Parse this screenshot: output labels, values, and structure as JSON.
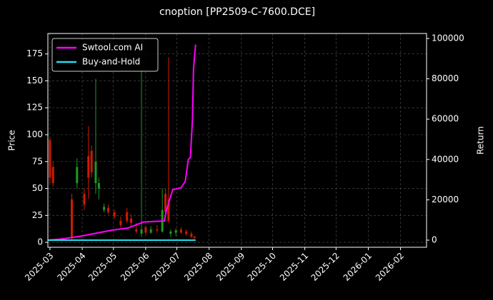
{
  "chart_data": {
    "type": "candlestick",
    "title": "cnoption [PP2509-C-7600.DCE]",
    "ylabel": "Price",
    "y2label": "Return",
    "candles": {
      "x": [
        0,
        3,
        21,
        26,
        33,
        37,
        40,
        44,
        47,
        52,
        56,
        62,
        68,
        74,
        78,
        83,
        88,
        92,
        97,
        103,
        108,
        111,
        114,
        116,
        121,
        126,
        131,
        136,
        139
      ],
      "open": [
        95,
        70,
        40,
        55,
        45,
        80,
        85,
        55,
        50,
        30,
        32,
        28,
        20,
        28,
        22,
        12,
        8,
        14,
        9,
        12,
        10,
        45,
        40,
        8,
        9,
        12,
        10,
        8,
        5
      ],
      "high": [
        97,
        75,
        45,
        78,
        50,
        108,
        90,
        152,
        60,
        36,
        35,
        30,
        24,
        32,
        26,
        18,
        160,
        16,
        15,
        16,
        50,
        50,
        172,
        12,
        13,
        14,
        12,
        10,
        6
      ],
      "low": [
        55,
        52,
        2,
        50,
        30,
        40,
        60,
        45,
        40,
        28,
        26,
        22,
        14,
        18,
        15,
        8,
        5,
        7,
        8,
        9,
        9,
        22,
        18,
        5,
        6,
        8,
        6,
        4,
        3
      ],
      "close": [
        60,
        55,
        5,
        70,
        35,
        60,
        65,
        75,
        55,
        33,
        28,
        24,
        16,
        20,
        18,
        10,
        12,
        9,
        12,
        11,
        30,
        28,
        20,
        10,
        11,
        9,
        8,
        5,
        4
      ],
      "up_color": "#1f9a1f",
      "down_color": "#d01a00"
    },
    "series": [
      {
        "name": "Swtool.com AI",
        "color": "#ff00ff",
        "axis": "y2",
        "x": [
          -2,
          10,
          30,
          40,
          60,
          75,
          85,
          90,
          110,
          112,
          118,
          126,
          130,
          133,
          135,
          137,
          138,
          140
        ],
        "values": [
          0,
          500,
          2000,
          3000,
          5000,
          6000,
          8000,
          9000,
          9500,
          15000,
          25000,
          26000,
          29000,
          40000,
          41000,
          60000,
          85000,
          97000
        ]
      },
      {
        "name": "Buy-and-Hold",
        "color": "#22dde8",
        "axis": "y2",
        "x": [
          -2,
          140
        ],
        "values": [
          0,
          0
        ]
      }
    ],
    "xlim": [
      -2,
      362
    ],
    "xticks": [
      {
        "value": 0,
        "label": "2025-03"
      },
      {
        "value": 31,
        "label": "2025-04"
      },
      {
        "value": 61,
        "label": "2025-05"
      },
      {
        "value": 92,
        "label": "2025-06"
      },
      {
        "value": 122,
        "label": "2025-07"
      },
      {
        "value": 153,
        "label": "2025-08"
      },
      {
        "value": 184,
        "label": "2025-09"
      },
      {
        "value": 214,
        "label": "2025-10"
      },
      {
        "value": 245,
        "label": "2025-11"
      },
      {
        "value": 275,
        "label": "2025-12"
      },
      {
        "value": 306,
        "label": "2026-01"
      },
      {
        "value": 337,
        "label": "2026-02"
      }
    ],
    "ylim": [
      -4.6,
      194
    ],
    "yticks": [
      0,
      25,
      50,
      75,
      100,
      125,
      150,
      175
    ],
    "y2lim": [
      -3530,
      102470
    ],
    "y2ticks": [
      0,
      20000,
      40000,
      60000,
      80000,
      100000
    ],
    "grid": true,
    "legend": "upper left"
  }
}
